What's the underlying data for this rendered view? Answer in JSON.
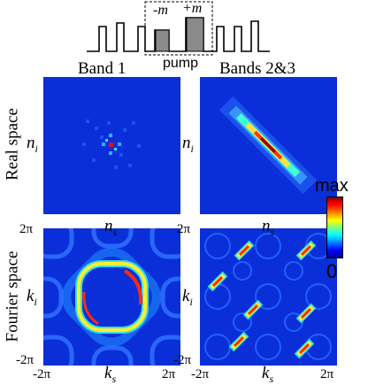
{
  "pump_diagram": {
    "minus_label": "-m",
    "plus_label": "+m",
    "pump_label": "pump"
  },
  "columns": {
    "left_title": "Band 1",
    "right_title": "Bands 2&3"
  },
  "rows": {
    "top_label": "Real space",
    "bottom_label": "Fourier space"
  },
  "axes": {
    "real_y": "n",
    "real_y_sub": "i",
    "real_x": "n",
    "real_x_sub": "s",
    "fourier_y": "k",
    "fourier_y_sub": "i",
    "fourier_x": "k",
    "fourier_x_sub": "s",
    "tick_pos": "2π",
    "tick_neg": "-2π"
  },
  "colorbar": {
    "max_label": "max",
    "min_label": "0",
    "colors": [
      "#8b0000",
      "#ff0000",
      "#ffff00",
      "#00ffff",
      "#0000ff",
      "#00008b"
    ]
  },
  "background_color": "#0a2fd8"
}
